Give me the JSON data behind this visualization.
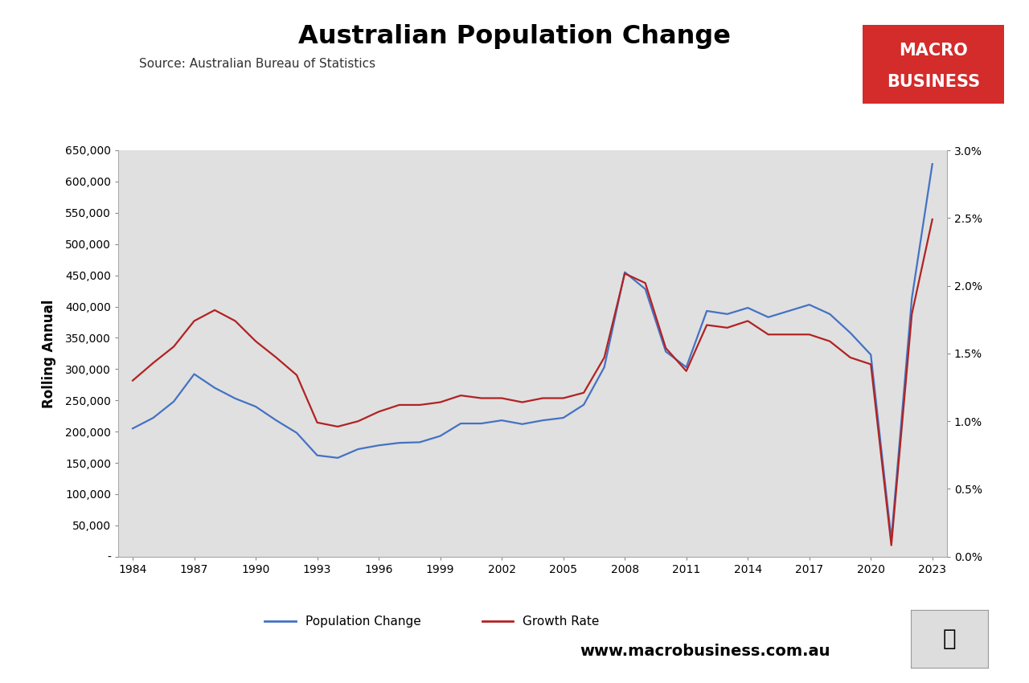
{
  "title": "Australian Population Change",
  "subtitle": "Source: Australian Bureau of Statistics",
  "ylabel_left": "Rolling Annual",
  "website": "www.macrobusiness.com.au",
  "bg_color": "#e0e0e0",
  "fig_bg": "#ffffff",
  "years": [
    1984,
    1985,
    1986,
    1987,
    1988,
    1989,
    1990,
    1991,
    1992,
    1993,
    1994,
    1995,
    1996,
    1997,
    1998,
    1999,
    2000,
    2001,
    2002,
    2003,
    2004,
    2005,
    2006,
    2007,
    2008,
    2009,
    2010,
    2011,
    2012,
    2013,
    2014,
    2015,
    2016,
    2017,
    2018,
    2019,
    2020,
    2021,
    2022,
    2023
  ],
  "pop_change": [
    205000,
    222000,
    248000,
    292000,
    270000,
    253000,
    240000,
    218000,
    198000,
    162000,
    158000,
    172000,
    178000,
    182000,
    183000,
    193000,
    213000,
    213000,
    218000,
    212000,
    218000,
    222000,
    243000,
    303000,
    455000,
    428000,
    328000,
    303000,
    393000,
    388000,
    398000,
    383000,
    393000,
    403000,
    388000,
    358000,
    323000,
    28000,
    413000,
    628000
  ],
  "growth_rate": [
    0.013,
    0.0143,
    0.0155,
    0.0174,
    0.0182,
    0.0174,
    0.0159,
    0.0147,
    0.0134,
    0.0099,
    0.0096,
    0.01,
    0.0107,
    0.0112,
    0.0112,
    0.0114,
    0.0119,
    0.0117,
    0.0117,
    0.0114,
    0.0117,
    0.0117,
    0.0121,
    0.0147,
    0.0209,
    0.0202,
    0.0154,
    0.0137,
    0.0171,
    0.0169,
    0.0174,
    0.0164,
    0.0164,
    0.0164,
    0.0159,
    0.0147,
    0.0142,
    0.00084,
    0.0179,
    0.0249
  ],
  "pop_color": "#4472c4",
  "growth_color": "#b22222",
  "ylim_left": [
    0,
    650000
  ],
  "ylim_right": [
    0.0,
    0.03
  ],
  "xticks": [
    1984,
    1987,
    1990,
    1993,
    1996,
    1999,
    2002,
    2005,
    2008,
    2011,
    2014,
    2017,
    2020,
    2023
  ],
  "macro_red": "#d42b2b",
  "macro_text": "#ffffff",
  "left_yticks": [
    0,
    50000,
    100000,
    150000,
    200000,
    250000,
    300000,
    350000,
    400000,
    450000,
    500000,
    550000,
    600000,
    650000
  ],
  "right_yticks": [
    0.0,
    0.005,
    0.01,
    0.015,
    0.02,
    0.025,
    0.03
  ]
}
